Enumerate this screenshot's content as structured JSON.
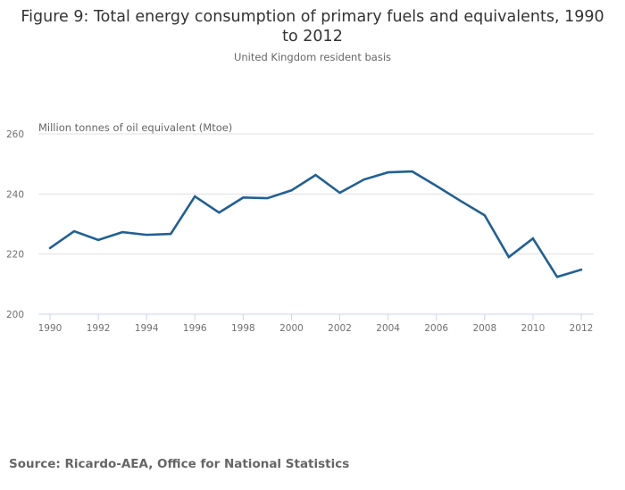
{
  "title": "Figure 9: Total energy consumption of primary fuels and equivalents, 1990 to 2012",
  "title_lines": [
    "Figure 9: Total energy consumption of primary fuels and equivalents, 1990",
    "to 2012"
  ],
  "subtitle": "United Kingdom resident basis",
  "source": "Source: Ricardo-AEA, Office for National Statistics",
  "colors": {
    "line": "#206095",
    "grid": "#e0e0e0",
    "axis": "#ccd6eb"
  },
  "chart_data": {
    "type": "line",
    "title": "Figure 9: Total energy consumption of primary fuels and equivalents, 1990 to 2012",
    "subtitle": "United Kingdom resident basis",
    "xlabel": "",
    "ylabel": "Million tonnes of oil equivalent (Mtoe)",
    "ylim": [
      200,
      260
    ],
    "xlim": [
      1990,
      2012
    ],
    "yticks": [
      200,
      220,
      240,
      260
    ],
    "xticks": [
      1990,
      1992,
      1994,
      1996,
      1998,
      2000,
      2002,
      2004,
      2006,
      2008,
      2010,
      2012
    ],
    "grid": true,
    "legend": "none",
    "x": [
      1990,
      1991,
      1992,
      1993,
      1994,
      1995,
      1996,
      1997,
      1998,
      1999,
      2000,
      2001,
      2002,
      2003,
      2004,
      2005,
      2006,
      2007,
      2008,
      2009,
      2010,
      2011,
      2012
    ],
    "series": [
      {
        "name": "Total energy consumption (Mtoe)",
        "values": [
          222.0,
          227.6,
          224.7,
          227.3,
          226.4,
          226.7,
          239.2,
          233.8,
          238.8,
          238.6,
          241.2,
          246.3,
          240.4,
          244.8,
          247.2,
          247.5,
          242.7,
          237.7,
          232.9,
          219.0,
          225.2,
          212.4,
          214.8
        ]
      }
    ]
  }
}
